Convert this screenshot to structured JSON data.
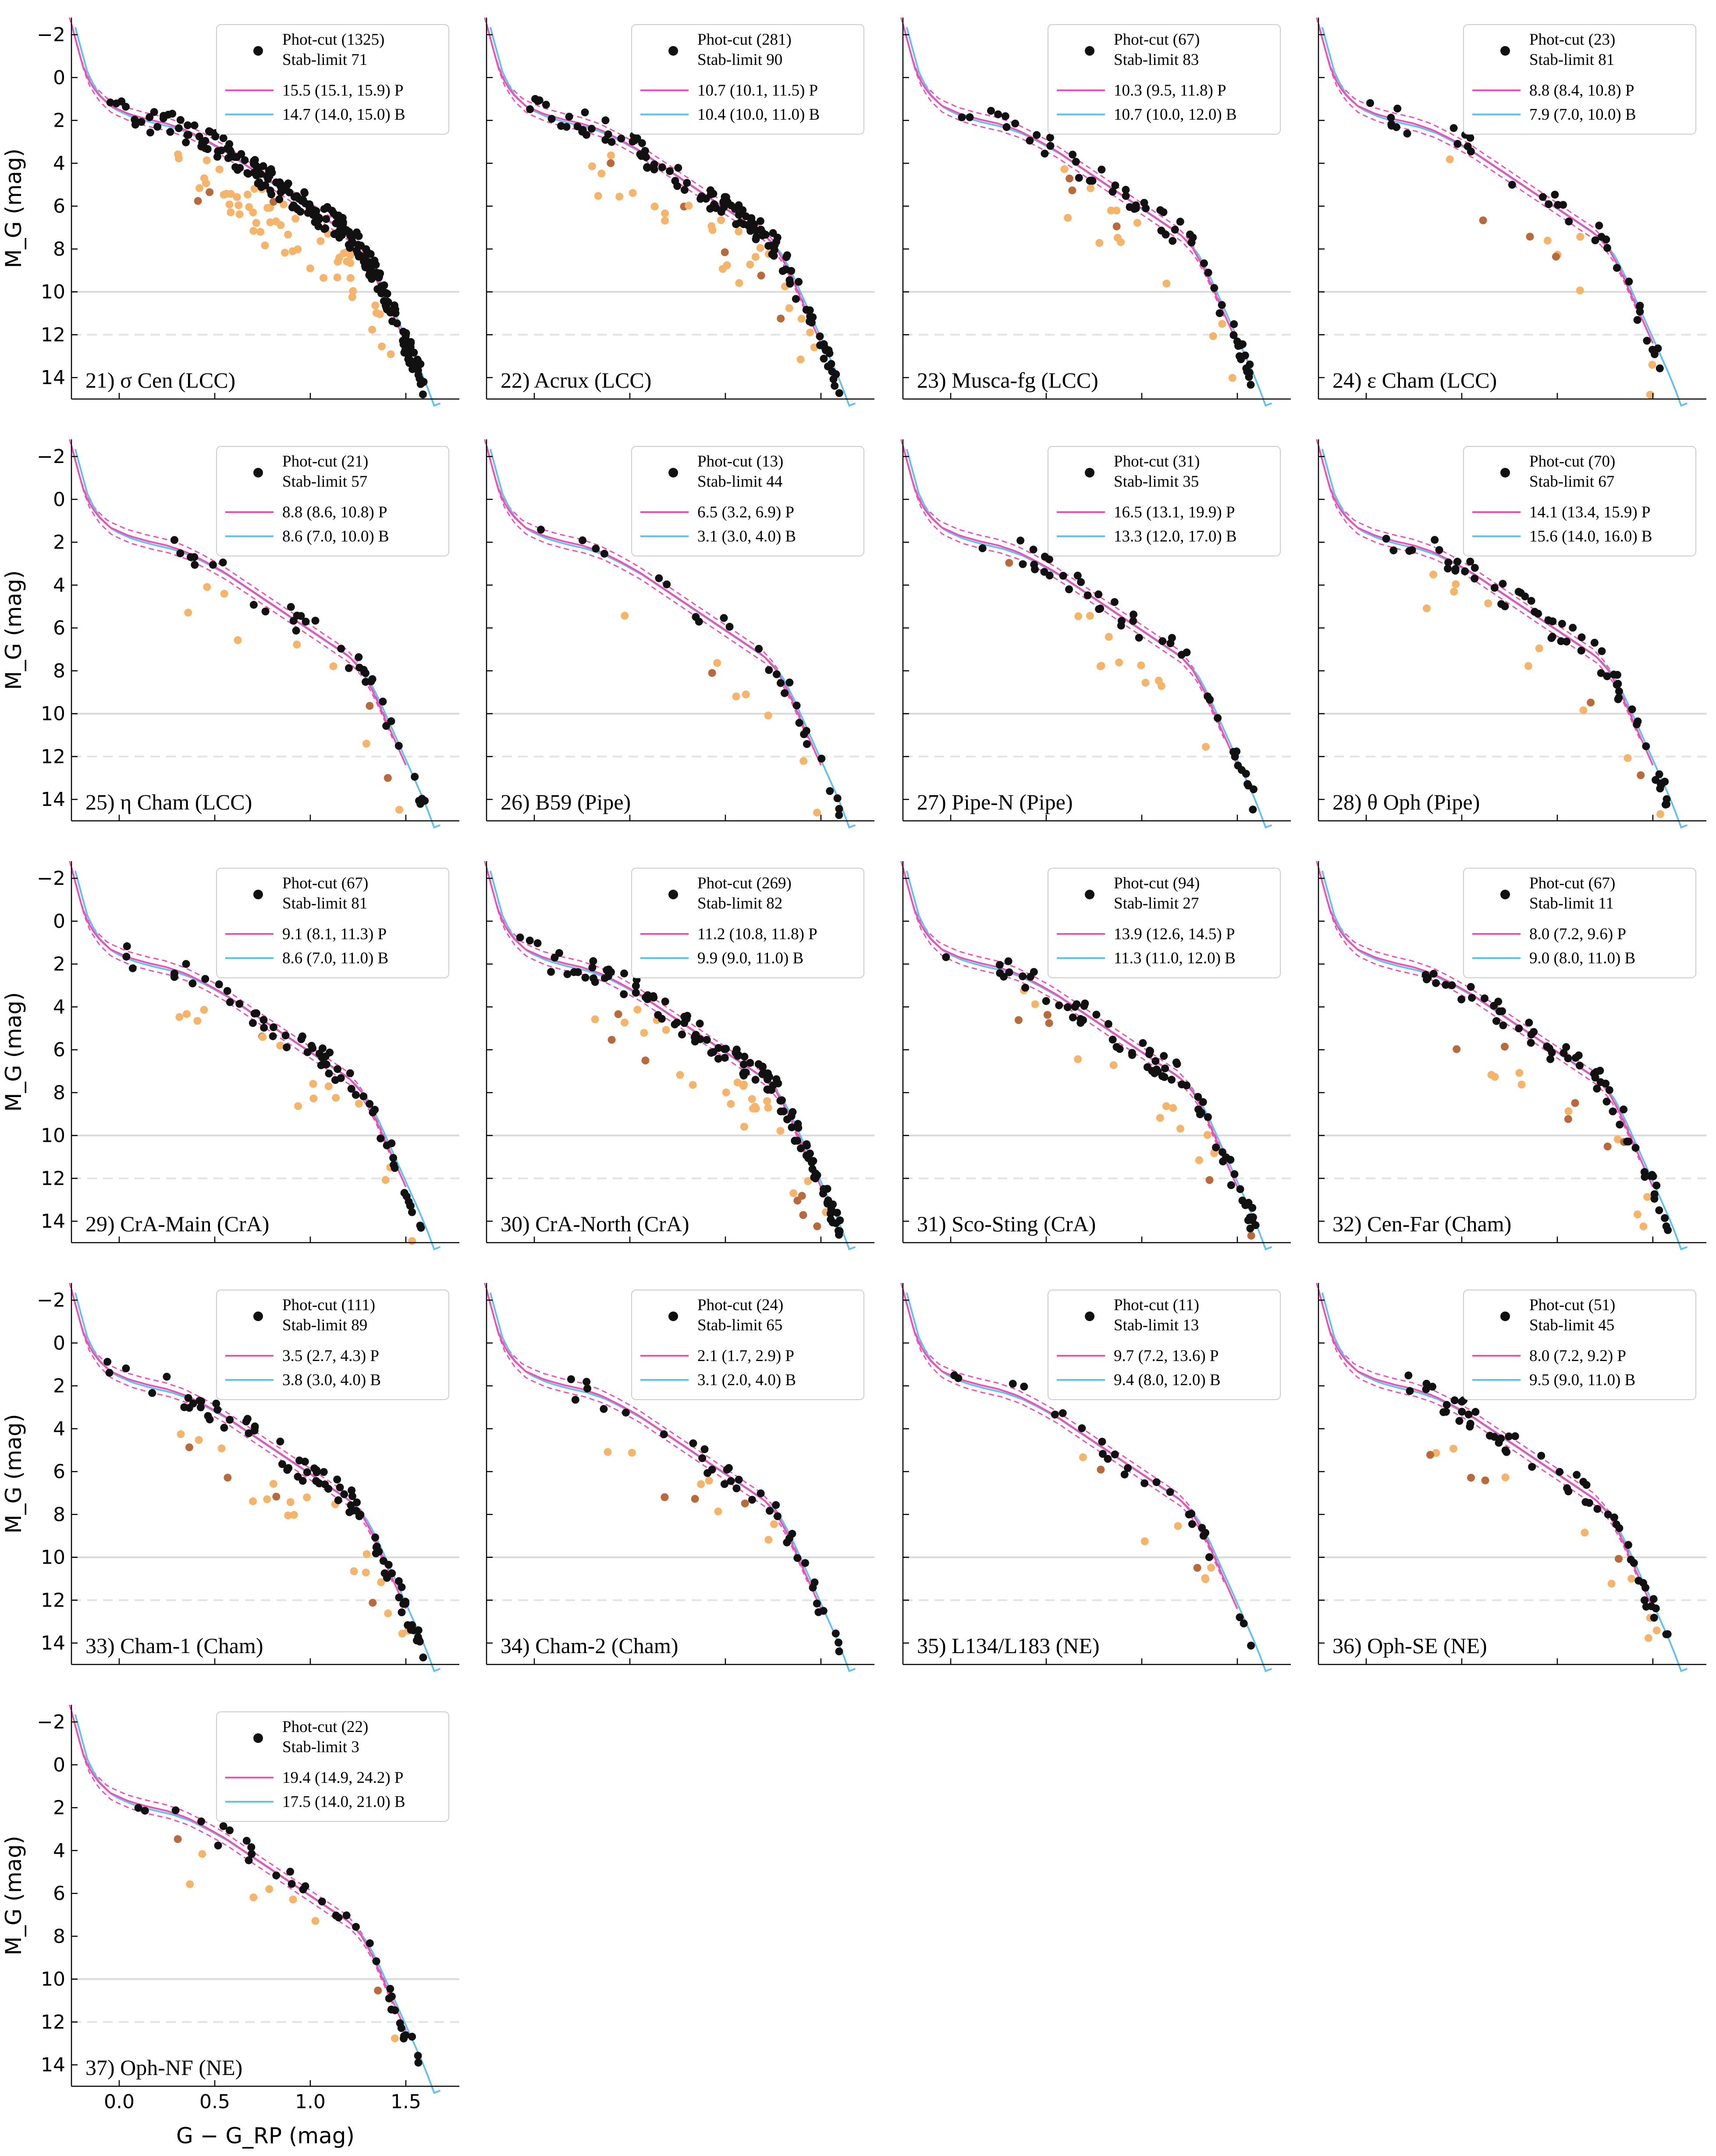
{
  "colors": {
    "pink": "#f050b4",
    "blue": "#64c0ec",
    "black": "#111111",
    "orange": "#f6b36a",
    "brown": "#b86a3c",
    "refline": "#d9d9d9"
  },
  "chart_data": {
    "type": "scatter",
    "xlabel": "G − G_RP (mag)",
    "ylabel": "M_G (mag)",
    "xlim": [
      -0.25,
      1.78
    ],
    "ylim": [
      15,
      -2.8
    ],
    "x_ticks": [
      "0.0",
      "0.5",
      "1.0",
      "1.5"
    ],
    "y_ticks": [
      "−2",
      "0",
      "2",
      "4",
      "6",
      "8",
      "10",
      "12",
      "14"
    ],
    "x_tick_values": [
      0,
      0.5,
      1.0,
      1.5
    ],
    "y_tick_values": [
      -2,
      0,
      2,
      4,
      6,
      8,
      10,
      12,
      14
    ],
    "reference_lines": [
      {
        "y": 10,
        "style": "solid"
      },
      {
        "y": 12,
        "style": "dashed"
      }
    ],
    "legend_position": "top-right",
    "panels": [
      {
        "id": 21,
        "label": "21) σ Cen (LCC)",
        "phot_cut": "Phot-cut (1325)",
        "stab_limit": "Stab-limit 71",
        "p_age": "15.5 (15.1, 15.9) P",
        "b_age": "14.7 (14.0, 15.0) B",
        "density": 1.0
      },
      {
        "id": 22,
        "label": "22) Acrux (LCC)",
        "phot_cut": "Phot-cut (281)",
        "stab_limit": "Stab-limit 90",
        "p_age": "10.7 (10.1, 11.5) P",
        "b_age": "10.4 (10.0, 11.0) B",
        "density": 0.5
      },
      {
        "id": 23,
        "label": "23) Musca-fg (LCC)",
        "phot_cut": "Phot-cut (67)",
        "stab_limit": "Stab-limit 83",
        "p_age": "10.3 (9.5, 11.8) P",
        "b_age": "10.7 (10.0, 12.0) B",
        "density": 0.22
      },
      {
        "id": 24,
        "label": "24) ε Cham (LCC)",
        "phot_cut": "Phot-cut (23)",
        "stab_limit": "Stab-limit 81",
        "p_age": "8.8 (8.4, 10.8) P",
        "b_age": "7.9 (7.0, 10.0) B",
        "density": 0.12
      },
      {
        "id": 25,
        "label": "25) η Cham (LCC)",
        "phot_cut": "Phot-cut (21)",
        "stab_limit": "Stab-limit 57",
        "p_age": "8.8 (8.6, 10.8) P",
        "b_age": "8.6 (7.0, 10.0) B",
        "density": 0.12
      },
      {
        "id": 26,
        "label": "26) B59 (Pipe)",
        "phot_cut": "Phot-cut (13)",
        "stab_limit": "Stab-limit 44",
        "p_age": "6.5 (3.2, 6.9) P",
        "b_age": "3.1 (3.0, 4.0) B",
        "density": 0.08
      },
      {
        "id": 27,
        "label": "27) Pipe-N (Pipe)",
        "phot_cut": "Phot-cut (31)",
        "stab_limit": "Stab-limit 35",
        "p_age": "16.5 (13.1, 19.9) P",
        "b_age": "13.3 (12.0, 17.0) B",
        "density": 0.15
      },
      {
        "id": 28,
        "label": "28) θ Oph (Pipe)",
        "phot_cut": "Phot-cut (70)",
        "stab_limit": "Stab-limit 67",
        "p_age": "14.1 (13.4, 15.9) P",
        "b_age": "15.6 (14.0, 16.0) B",
        "density": 0.22
      },
      {
        "id": 29,
        "label": "29) CrA-Main (CrA)",
        "phot_cut": "Phot-cut (67)",
        "stab_limit": "Stab-limit 81",
        "p_age": "9.1 (8.1, 11.3) P",
        "b_age": "8.6 (7.0, 11.0) B",
        "density": 0.22
      },
      {
        "id": 30,
        "label": "30) CrA-North (CrA)",
        "phot_cut": "Phot-cut (269)",
        "stab_limit": "Stab-limit 82",
        "p_age": "11.2 (10.8, 11.8) P",
        "b_age": "9.9 (9.0, 11.0) B",
        "density": 0.5
      },
      {
        "id": 31,
        "label": "31) Sco-Sting (CrA)",
        "phot_cut": "Phot-cut (94)",
        "stab_limit": "Stab-limit 27",
        "p_age": "13.9 (12.6, 14.5) P",
        "b_age": "11.3 (11.0, 12.0) B",
        "density": 0.28
      },
      {
        "id": 32,
        "label": "32) Cen-Far (Cham)",
        "phot_cut": "Phot-cut (67)",
        "stab_limit": "Stab-limit 11",
        "p_age": "8.0 (7.2, 9.6) P",
        "b_age": "9.0 (8.0, 11.0) B",
        "density": 0.22
      },
      {
        "id": 33,
        "label": "33) Cham-1 (Cham)",
        "phot_cut": "Phot-cut (111)",
        "stab_limit": "Stab-limit 89",
        "p_age": "3.5 (2.7, 4.3) P",
        "b_age": "3.8 (3.0, 4.0) B",
        "density": 0.32
      },
      {
        "id": 34,
        "label": "34) Cham-2 (Cham)",
        "phot_cut": "Phot-cut (24)",
        "stab_limit": "Stab-limit 65",
        "p_age": "2.1 (1.7, 2.9) P",
        "b_age": "3.1 (2.0, 4.0) B",
        "density": 0.12
      },
      {
        "id": 35,
        "label": "35) L134/L183 (NE)",
        "phot_cut": "Phot-cut (11)",
        "stab_limit": "Stab-limit 13",
        "p_age": "9.7 (7.2, 13.6) P",
        "b_age": "9.4 (8.0, 12.0) B",
        "density": 0.08
      },
      {
        "id": 36,
        "label": "36) Oph-SE (NE)",
        "phot_cut": "Phot-cut (51)",
        "stab_limit": "Stab-limit 45",
        "p_age": "8.0 (7.2, 9.2) P",
        "b_age": "9.5 (9.0, 11.0) B",
        "density": 0.2
      },
      {
        "id": 37,
        "label": "37) Oph-NF (NE)",
        "phot_cut": "Phot-cut (22)",
        "stab_limit": "Stab-limit 3",
        "p_age": "19.4 (14.9, 24.2) P",
        "b_age": "17.5 (14.0, 21.0) B",
        "density": 0.12
      }
    ]
  }
}
